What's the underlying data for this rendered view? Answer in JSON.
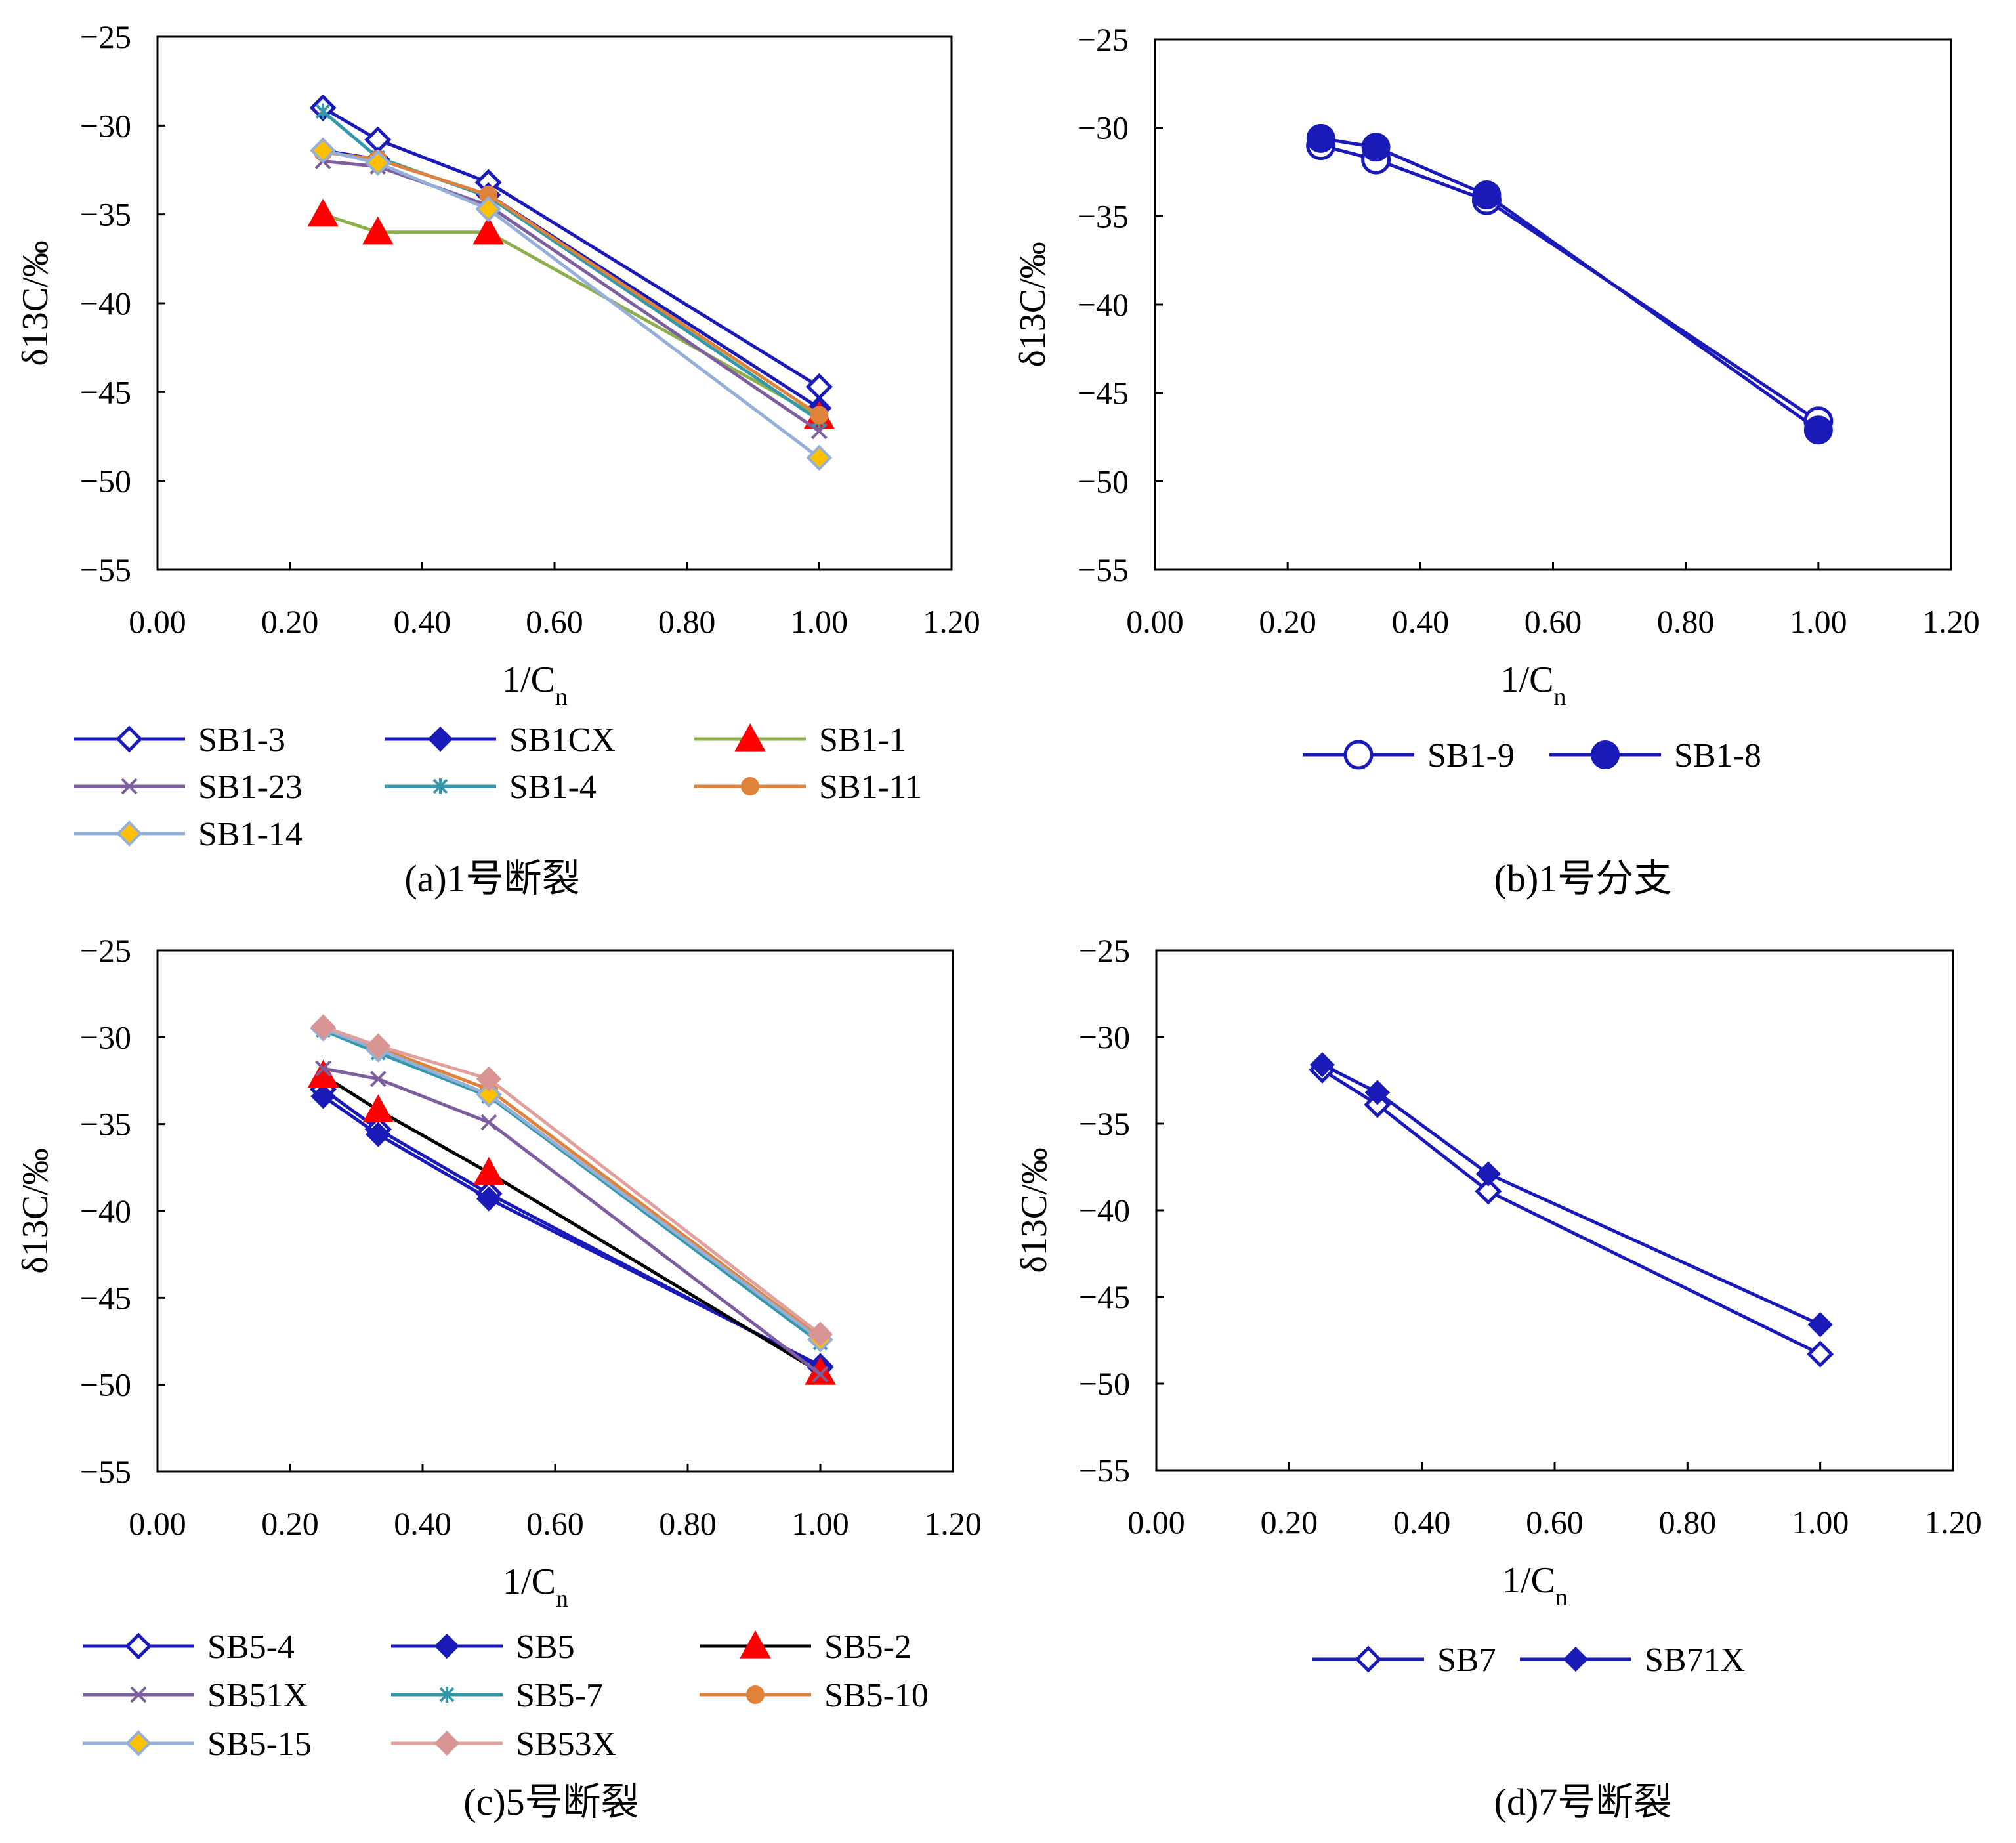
{
  "figure": {
    "captions": [
      "(a)1号断裂",
      "(b)1号分支",
      "(c)5号断裂",
      "(d)7号断裂"
    ]
  },
  "chart_data": [
    {
      "type": "line",
      "caption": "(a)1号断裂",
      "xlabel": "1/C",
      "xlabel_sub": "n",
      "ylabel": "δ13C/‰",
      "xlim": [
        0,
        1.2
      ],
      "ylim": [
        -55,
        -25
      ],
      "x_ticks": [
        "0.00",
        "0.20",
        "0.40",
        "0.60",
        "0.80",
        "1.00",
        "1.20"
      ],
      "y_ticks": [
        "−25",
        "−30",
        "−35",
        "−40",
        "−45",
        "−50",
        "−55"
      ],
      "grid": false,
      "legend_position": "bottom",
      "series": [
        {
          "name": "SB1-3",
          "marker": "diamond-open",
          "color": "#1a1ab8",
          "marker_color": "#1a1ab8",
          "points": [
            [
              0.25,
              -29.0
            ],
            [
              0.333,
              -30.8
            ],
            [
              0.5,
              -33.2
            ],
            [
              1.0,
              -44.7
            ]
          ]
        },
        {
          "name": "SB1CX",
          "marker": "diamond-filled",
          "color": "#1a1ab8",
          "marker_color": "#1a1ab8",
          "points": [
            [
              0.25,
              -31.4
            ],
            [
              0.333,
              -31.9
            ],
            [
              0.5,
              -33.9
            ],
            [
              1.0,
              -45.9
            ]
          ]
        },
        {
          "name": "SB1-1",
          "marker": "triangle",
          "color": "#8db04c",
          "marker_color": "#ff0000",
          "points": [
            [
              0.25,
              -35.0
            ],
            [
              0.333,
              -36.0
            ],
            [
              0.5,
              -36.0
            ],
            [
              1.0,
              -46.4
            ]
          ]
        },
        {
          "name": "SB1-23",
          "marker": "x",
          "color": "#7d5fa0",
          "marker_color": "#7d5fa0",
          "points": [
            [
              0.25,
              -32.0
            ],
            [
              0.333,
              -32.3
            ],
            [
              0.5,
              -34.5
            ],
            [
              1.0,
              -47.2
            ]
          ]
        },
        {
          "name": "SB1-4",
          "marker": "star",
          "color": "#3399aa",
          "marker_color": "#3399aa",
          "points": [
            [
              0.25,
              -29.2
            ],
            [
              0.333,
              -31.8
            ],
            [
              0.5,
              -34.0
            ],
            [
              1.0,
              -46.6
            ]
          ]
        },
        {
          "name": "SB1-11",
          "marker": "circle-filled",
          "color": "#e0833a",
          "marker_color": "#e0833a",
          "points": [
            [
              0.25,
              -31.5
            ],
            [
              0.333,
              -31.9
            ],
            [
              0.5,
              -33.9
            ],
            [
              1.0,
              -46.3
            ]
          ]
        },
        {
          "name": "SB1-14",
          "marker": "diamond-yellow",
          "color": "#95b0d8",
          "marker_color": "#ffc000",
          "points": [
            [
              0.25,
              -31.4
            ],
            [
              0.333,
              -32.1
            ],
            [
              0.5,
              -34.7
            ],
            [
              1.0,
              -48.7
            ]
          ]
        }
      ]
    },
    {
      "type": "line",
      "caption": "(b)1号分支",
      "xlabel": "1/C",
      "xlabel_sub": "n",
      "ylabel": "δ13C/‰",
      "xlim": [
        0,
        1.2
      ],
      "ylim": [
        -55,
        -25
      ],
      "x_ticks": [
        "0.00",
        "0.20",
        "0.40",
        "0.60",
        "0.80",
        "1.00",
        "1.20"
      ],
      "y_ticks": [
        "−25",
        "−30",
        "−35",
        "−40",
        "−45",
        "−50",
        "−55"
      ],
      "grid": false,
      "legend_position": "bottom",
      "series": [
        {
          "name": "SB1-9",
          "marker": "circle-open",
          "color": "#1a1ab8",
          "marker_color": "#1a1ab8",
          "points": [
            [
              0.25,
              -31.0
            ],
            [
              0.333,
              -31.8
            ],
            [
              0.5,
              -34.1
            ],
            [
              1.0,
              -46.6
            ]
          ]
        },
        {
          "name": "SB1-8",
          "marker": "circle-filled-big",
          "color": "#1a1ab8",
          "marker_color": "#1a1ab8",
          "points": [
            [
              0.25,
              -30.6
            ],
            [
              0.333,
              -31.1
            ],
            [
              0.5,
              -33.8
            ],
            [
              1.0,
              -47.1
            ]
          ]
        }
      ]
    },
    {
      "type": "line",
      "caption": "(c)5号断裂",
      "xlabel": "1/C",
      "xlabel_sub": "n",
      "ylabel": "δ13C/‰",
      "xlim": [
        0,
        1.2
      ],
      "ylim": [
        -55,
        -25
      ],
      "x_ticks": [
        "0.00",
        "0.20",
        "0.40",
        "0.60",
        "0.80",
        "1.00",
        "1.20"
      ],
      "y_ticks": [
        "−25",
        "−30",
        "−35",
        "−40",
        "−45",
        "−50",
        "−55"
      ],
      "grid": false,
      "legend_position": "bottom",
      "series": [
        {
          "name": "SB5-4",
          "marker": "diamond-open",
          "color": "#1a1ab8",
          "marker_color": "#1a1ab8",
          "points": [
            [
              0.25,
              -33.0
            ],
            [
              0.333,
              -35.3
            ],
            [
              0.5,
              -39.0
            ],
            [
              1.0,
              -49.0
            ]
          ]
        },
        {
          "name": "SB5",
          "marker": "diamond-filled",
          "color": "#1a1ab8",
          "marker_color": "#1a1ab8",
          "points": [
            [
              0.25,
              -33.4
            ],
            [
              0.333,
              -35.6
            ],
            [
              0.5,
              -39.3
            ],
            [
              1.0,
              -48.9
            ]
          ]
        },
        {
          "name": "SB5-2",
          "marker": "triangle",
          "color": "#000000",
          "marker_color": "#ff0000",
          "points": [
            [
              0.25,
              -32.2
            ],
            [
              0.333,
              -34.2
            ],
            [
              0.5,
              -37.8
            ],
            [
              1.0,
              -49.3
            ]
          ]
        },
        {
          "name": "SB51X",
          "marker": "x",
          "color": "#7d5fa0",
          "marker_color": "#7d5fa0",
          "points": [
            [
              0.25,
              -31.8
            ],
            [
              0.333,
              -32.4
            ],
            [
              0.5,
              -34.9
            ],
            [
              1.0,
              -49.4
            ]
          ]
        },
        {
          "name": "SB5-7",
          "marker": "star",
          "color": "#3399aa",
          "marker_color": "#3399aa",
          "points": [
            [
              0.25,
              -29.6
            ],
            [
              0.333,
              -30.9
            ],
            [
              0.5,
              -33.4
            ],
            [
              1.0,
              -47.6
            ]
          ]
        },
        {
          "name": "SB5-10",
          "marker": "circle-filled",
          "color": "#e0833a",
          "marker_color": "#e0833a",
          "points": [
            [
              0.25,
              -29.5
            ],
            [
              0.333,
              -30.6
            ],
            [
              0.5,
              -33.0
            ],
            [
              1.0,
              -47.3
            ]
          ]
        },
        {
          "name": "SB5-15",
          "marker": "diamond-yellow",
          "color": "#95b0d8",
          "marker_color": "#ffc000",
          "points": [
            [
              0.25,
              -29.5
            ],
            [
              0.333,
              -30.7
            ],
            [
              0.5,
              -33.3
            ],
            [
              1.0,
              -47.4
            ]
          ]
        },
        {
          "name": "SB53X",
          "marker": "diamond-pink",
          "color": "#e2a09c",
          "marker_color": "#d99594",
          "points": [
            [
              0.25,
              -29.4
            ],
            [
              0.333,
              -30.5
            ],
            [
              0.5,
              -32.4
            ],
            [
              1.0,
              -47.1
            ]
          ]
        }
      ]
    },
    {
      "type": "line",
      "caption": "(d)7号断裂",
      "xlabel": "1/C",
      "xlabel_sub": "n",
      "ylabel": "δ13C/‰",
      "xlim": [
        0,
        1.2
      ],
      "ylim": [
        -55,
        -25
      ],
      "x_ticks": [
        "0.00",
        "0.20",
        "0.40",
        "0.60",
        "0.80",
        "1.00",
        "1.20"
      ],
      "y_ticks": [
        "−25",
        "−30",
        "−35",
        "−40",
        "−45",
        "−50",
        "−55"
      ],
      "grid": false,
      "legend_position": "bottom",
      "series": [
        {
          "name": "SB7",
          "marker": "diamond-open",
          "color": "#1a1ab8",
          "marker_color": "#1a1ab8",
          "points": [
            [
              0.25,
              -31.9
            ],
            [
              0.333,
              -33.9
            ],
            [
              0.5,
              -38.9
            ],
            [
              1.0,
              -48.3
            ]
          ]
        },
        {
          "name": "SB71X",
          "marker": "diamond-filled",
          "color": "#1a1ab8",
          "marker_color": "#1a1ab8",
          "points": [
            [
              0.25,
              -31.6
            ],
            [
              0.333,
              -33.2
            ],
            [
              0.5,
              -37.9
            ],
            [
              1.0,
              -46.6
            ]
          ]
        }
      ]
    }
  ]
}
